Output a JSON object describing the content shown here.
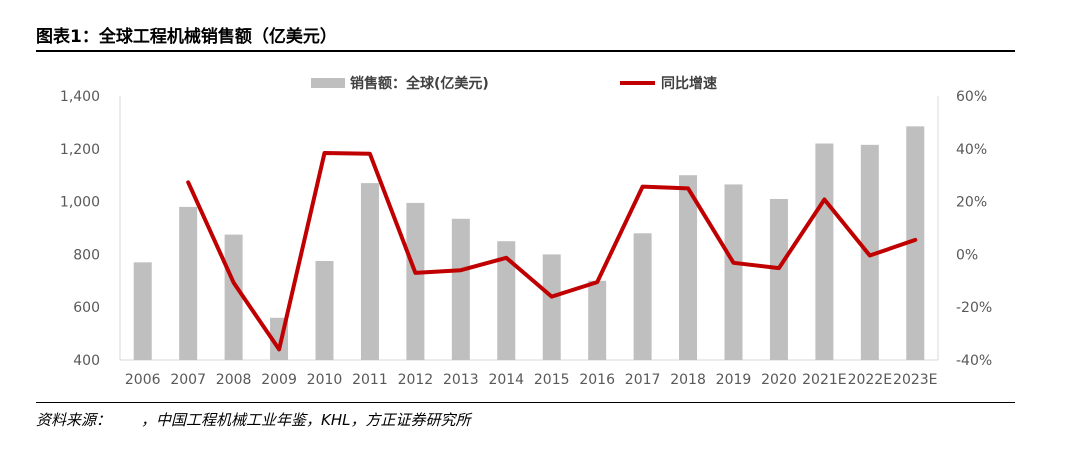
{
  "header": {
    "title": "图表1：全球工程机械销售额（亿美元）"
  },
  "footer": {
    "source": "资料来源：　　，中国工程机械工业年鉴，KHL，方正证券研究所"
  },
  "colors": {
    "bar": "#bfbfbf",
    "line": "#c00000",
    "axis_text": "#595959",
    "axis": "#d9d9d9"
  },
  "chart_data": {
    "type": "bar",
    "categories": [
      "2006",
      "2007",
      "2008",
      "2009",
      "2010",
      "2011",
      "2012",
      "2013",
      "2014",
      "2015",
      "2016",
      "2017",
      "2018",
      "2019",
      "2020",
      "2021E",
      "2022E",
      "2023E"
    ],
    "series": [
      {
        "name": "销售额：全球(亿美元)",
        "type": "bar",
        "axis": "left",
        "values": [
          770,
          980,
          875,
          560,
          775,
          1070,
          995,
          935,
          850,
          800,
          700,
          880,
          1100,
          1065,
          1010,
          1220,
          1215,
          1285
        ]
      },
      {
        "name": "同比增速",
        "type": "line",
        "axis": "right",
        "values": [
          null,
          27.3,
          -10.7,
          -36.0,
          38.4,
          38.1,
          -7.0,
          -6.0,
          -1.3,
          -16.0,
          -10.5,
          25.7,
          25.0,
          -3.2,
          -5.2,
          20.8,
          -0.4,
          5.5
        ]
      }
    ],
    "y_left": {
      "ticks": [
        "400",
        "600",
        "800",
        "1,000",
        "1,200",
        "1,400"
      ],
      "min": 400,
      "max": 1400
    },
    "y_right": {
      "ticks": [
        "-40%",
        "-20%",
        "0%",
        "20%",
        "40%",
        "60%"
      ],
      "min": -40,
      "max": 60
    },
    "legend_position": "top-center",
    "grid": false
  }
}
